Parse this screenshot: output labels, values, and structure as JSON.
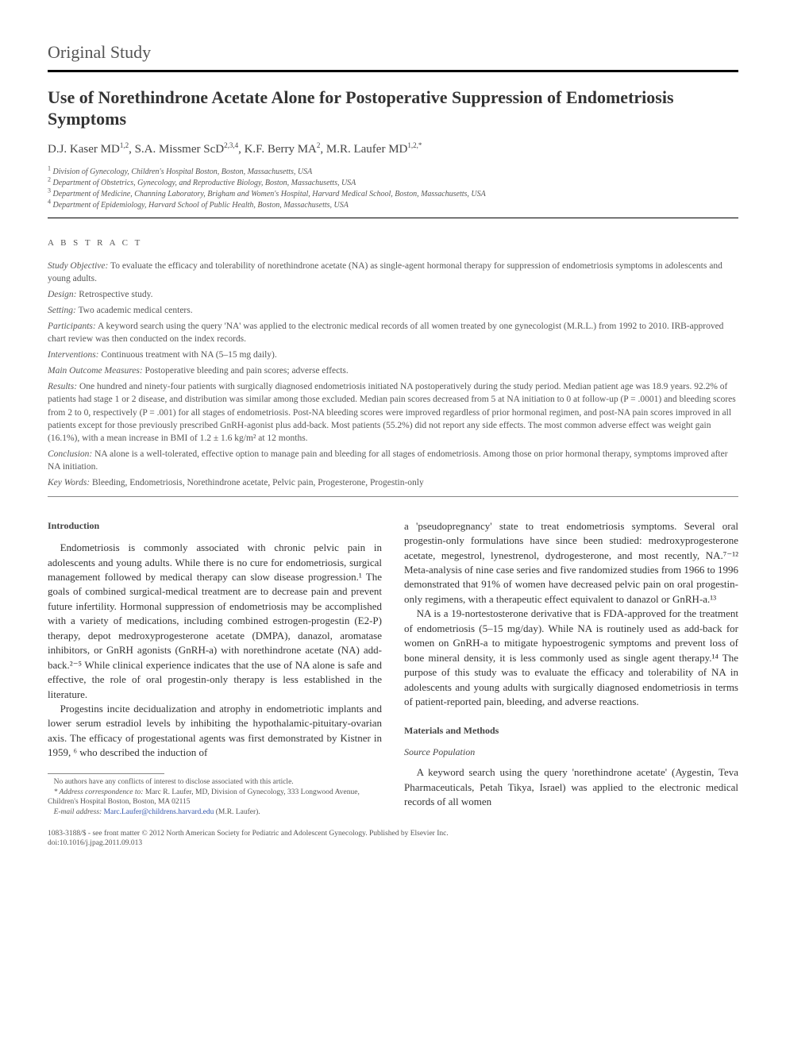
{
  "article_type": "Original Study",
  "title": "Use of Norethindrone Acetate Alone for Postoperative Suppression of Endometriosis Symptoms",
  "authors_html": "D.J. Kaser MD<sup>1,2</sup>, S.A. Missmer ScD<sup>2,3,4</sup>, K.F. Berry MA<sup>2</sup>, M.R. Laufer MD<sup>1,2,*</sup>",
  "affiliations": [
    {
      "num": "1",
      "text": "Division of Gynecology, Children's Hospital Boston, Boston, Massachusetts, USA"
    },
    {
      "num": "2",
      "text": "Department of Obstetrics, Gynecology, and Reproductive Biology, Boston, Massachusetts, USA"
    },
    {
      "num": "3",
      "text": "Department of Medicine, Channing Laboratory, Brigham and Women's Hospital, Harvard Medical School, Boston, Massachusetts, USA"
    },
    {
      "num": "4",
      "text": "Department of Epidemiology, Harvard School of Public Health, Boston, Massachusetts, USA"
    }
  ],
  "abstract_heading": "A B S T R A C T",
  "abstract": {
    "objective_label": "Study Objective:",
    "objective": " To evaluate the efficacy and tolerability of norethindrone acetate (NA) as single-agent hormonal therapy for suppression of endometriosis symptoms in adolescents and young adults.",
    "design_label": "Design:",
    "design": " Retrospective study.",
    "setting_label": "Setting:",
    "setting": " Two academic medical centers.",
    "participants_label": "Participants:",
    "participants": " A keyword search using the query 'NA' was applied to the electronic medical records of all women treated by one gynecologist (M.R.L.) from 1992 to 2010. IRB-approved chart review was then conducted on the index records.",
    "interventions_label": "Interventions:",
    "interventions": " Continuous treatment with NA (5–15 mg daily).",
    "outcomes_label": "Main Outcome Measures:",
    "outcomes": " Postoperative bleeding and pain scores; adverse effects.",
    "results_label": "Results:",
    "results": " One hundred and ninety-four patients with surgically diagnosed endometriosis initiated NA postoperatively during the study period. Median patient age was 18.9 years. 92.2% of patients had stage 1 or 2 disease, and distribution was similar among those excluded. Median pain scores decreased from 5 at NA initiation to 0 at follow-up (P = .0001) and bleeding scores from 2 to 0, respectively (P = .001) for all stages of endometriosis. Post-NA bleeding scores were improved regardless of prior hormonal regimen, and post-NA pain scores improved in all patients except for those previously prescribed GnRH-agonist plus add-back. Most patients (55.2%) did not report any side effects. The most common adverse effect was weight gain (16.1%), with a mean increase in BMI of 1.2 ± 1.6 kg/m² at 12 months.",
    "conclusion_label": "Conclusion:",
    "conclusion": " NA alone is a well-tolerated, effective option to manage pain and bleeding for all stages of endometriosis. Among those on prior hormonal therapy, symptoms improved after NA initiation.",
    "keywords_label": "Key Words:",
    "keywords": "  Bleeding, Endometriosis, Norethindrone acetate, Pelvic pain, Progesterone, Progestin-only"
  },
  "sections": {
    "intro_head": "Introduction",
    "intro_p1": "Endometriosis is commonly associated with chronic pelvic pain in adolescents and young adults. While there is no cure for endometriosis, surgical management followed by medical therapy can slow disease progression.¹ The goals of combined surgical-medical treatment are to decrease pain and prevent future infertility. Hormonal suppression of endometriosis may be accomplished with a variety of medications, including combined estrogen-progestin (E2-P) therapy, depot medroxyprogesterone acetate (DMPA), danazol, aromatase inhibitors, or GnRH agonists (GnRH-a) with norethindrone acetate (NA) add-back.²⁻⁵ While clinical experience indicates that the use of NA alone is safe and effective, the role of oral progestin-only therapy is less established in the literature.",
    "intro_p2": "Progestins incite decidualization and atrophy in endometriotic implants and lower serum estradiol levels by inhibiting the hypothalamic-pituitary-ovarian axis. The efficacy of progestational agents was first demonstrated by Kistner in 1959, ⁶ who described the induction of",
    "intro_p3": "a 'pseudopregnancy' state to treat endometriosis symptoms. Several oral progestin-only formulations have since been studied: medroxyprogesterone acetate, megestrol, lynestrenol, dydrogesterone, and most recently, NA.⁷⁻¹² Meta-analysis of nine case series and five randomized studies from 1966 to 1996 demonstrated that 91% of women have decreased pelvic pain on oral progestin-only regimens, with a therapeutic effect equivalent to danazol or GnRH-a.¹³",
    "intro_p4": "NA is a 19-nortestosterone derivative that is FDA-approved for the treatment of endometriosis (5–15 mg/day). While NA is routinely used as add-back for women on GnRH-a to mitigate hypoestrogenic symptoms and prevent loss of bone mineral density, it is less commonly used as single agent therapy.¹⁴ The purpose of this study was to evaluate the efficacy and tolerability of NA in adolescents and young adults with surgically diagnosed endometriosis in terms of patient-reported pain, bleeding, and adverse reactions.",
    "methods_head": "Materials and Methods",
    "source_pop_head": "Source Population",
    "methods_p1": "A keyword search using the query 'norethindrone acetate' (Aygestin, Teva Pharmaceuticals, Petah Tikya, Israel) was applied to the electronic medical records of all women"
  },
  "footnotes": {
    "conflict": "No authors have any conflicts of interest to disclose associated with this article.",
    "corr_label": "* Address correspondence to:",
    "corr": " Marc R. Laufer, MD, Division of Gynecology, 333 Longwood Avenue, Children's Hospital Boston, Boston, MA 02115",
    "email_label": "E-mail address:",
    "email": " Marc.Laufer@childrens.harvard.edu",
    "email_suffix": " (M.R. Laufer)."
  },
  "bottom": {
    "issn": "1083-3188/$ - see front matter © 2012 North American Society for Pediatric and Adolescent Gynecology. Published by Elsevier Inc.",
    "doi": "doi:10.1016/j.jpag.2011.09.013"
  },
  "colors": {
    "text": "#444444",
    "rule": "#000000",
    "link": "#3355aa",
    "background": "#ffffff"
  },
  "typography": {
    "body_fontsize_pt": 10,
    "title_fontsize_pt": 17,
    "abstract_fontsize_pt": 9,
    "footnote_fontsize_pt": 7.5
  }
}
